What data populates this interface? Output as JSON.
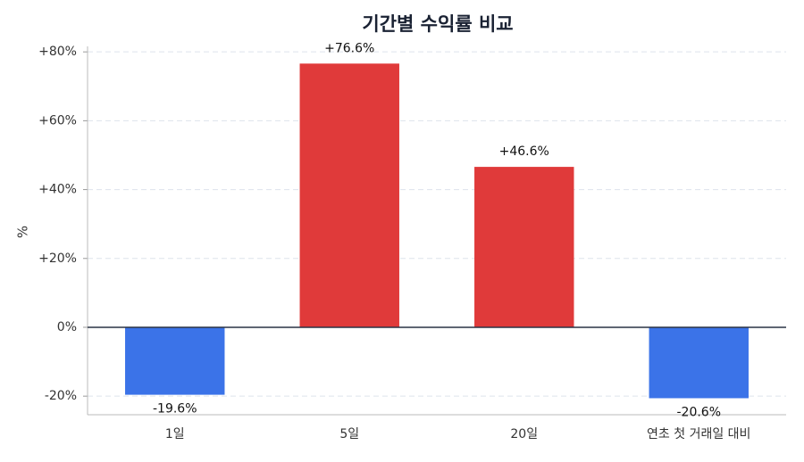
{
  "chart_data": {
    "type": "bar",
    "title": "기간별 수익률 비교",
    "y_label": "%",
    "categories": [
      "1일",
      "5일",
      "20일",
      "연초 첫 거래일 대비"
    ],
    "values": [
      -19.6,
      76.6,
      46.6,
      -20.6
    ],
    "value_labels": [
      "-19.6%",
      "+76.6%",
      "+46.6%",
      "-20.6%"
    ],
    "colors": [
      "#3b73e8",
      "#e03a3a",
      "#e03a3a",
      "#3b73e8"
    ],
    "ylim": [
      -25.4,
      81.6
    ],
    "yticks": [
      {
        "value": -20,
        "label": "-20%"
      },
      {
        "value": 0,
        "label": "0%"
      },
      {
        "value": 20,
        "label": "+20%"
      },
      {
        "value": 40,
        "label": "+40%"
      },
      {
        "value": 60,
        "label": "+60%"
      },
      {
        "value": 80,
        "label": "+80%"
      }
    ],
    "grid": true
  }
}
